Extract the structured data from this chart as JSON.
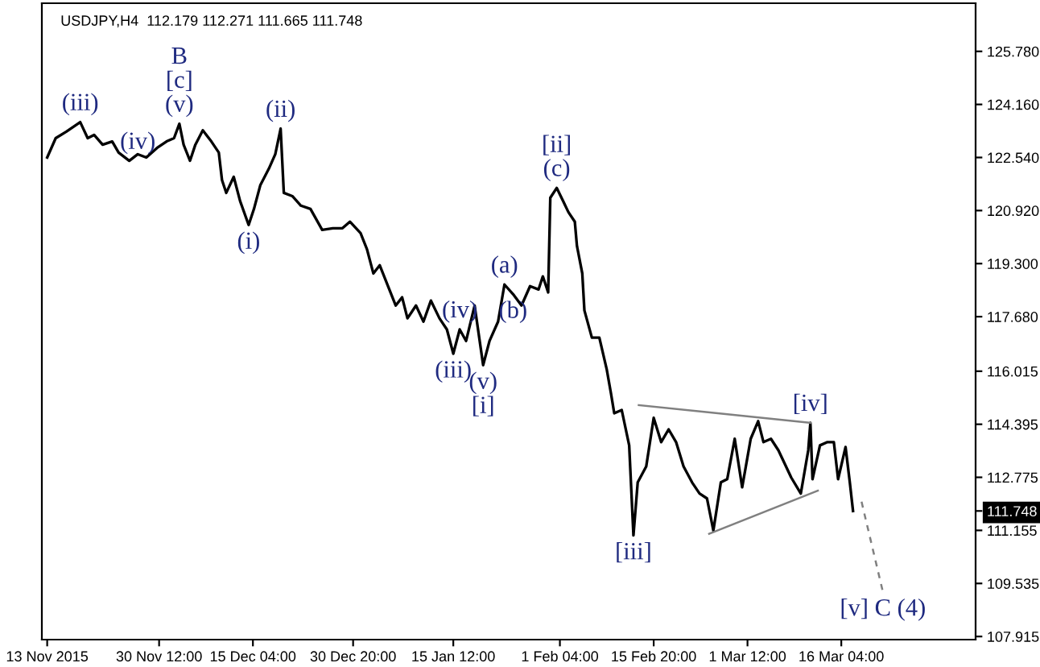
{
  "chart_data": {
    "type": "line",
    "title": "USDJPY,H4  112.179 112.271 111.665 111.748",
    "series": [
      {
        "color": "#000000",
        "x": [
          "2015-11-13T00:00",
          "2015-11-14T08:00",
          "2015-11-16T00:00",
          "2015-11-18T04:00",
          "2015-11-19T08:00",
          "2015-11-20T08:00",
          "2015-11-21T16:00",
          "2015-11-23T04:00",
          "2015-11-24T04:00",
          "2015-11-25T20:00",
          "2015-11-27T04:00",
          "2015-11-28T12:00",
          "2015-11-30T04:00",
          "2015-12-01T16:00",
          "2015-12-02T20:00",
          "2015-12-03T16:00",
          "2015-12-04T08:00",
          "2015-12-05T08:00",
          "2015-12-06T04:00",
          "2015-12-07T08:00",
          "2015-12-08T16:00",
          "2015-12-09T20:00",
          "2015-12-10T08:00",
          "2015-12-11T00:00",
          "2015-12-12T04:00",
          "2015-12-13T04:00",
          "2015-12-14T12:00",
          "2015-12-15T08:00",
          "2015-12-16T08:00",
          "2015-12-17T16:00",
          "2015-12-18T16:00",
          "2015-12-19T12:00",
          "2015-12-20T00:00",
          "2015-12-21T08:00",
          "2015-12-22T16:00",
          "2015-12-24T04:00",
          "2015-12-26T00:00",
          "2015-12-27T16:00",
          "2015-12-29T04:00",
          "2015-12-30T08:00",
          "2016-01-01T00:00",
          "2016-01-02T00:00",
          "2016-01-03T00:00",
          "2016-01-04T00:00",
          "2016-01-05T12:00",
          "2016-01-06T12:00",
          "2016-01-07T12:00",
          "2016-01-08T08:00",
          "2016-01-09T16:00",
          "2016-01-10T20:00",
          "2016-01-12T00:00",
          "2016-01-13T08:00",
          "2016-01-14T12:00",
          "2016-01-15T12:00",
          "2016-01-16T12:00",
          "2016-01-17T12:00",
          "2016-01-18T20:00",
          "2016-01-20T04:00",
          "2016-01-21T04:00",
          "2016-01-22T12:00",
          "2016-01-23T12:00",
          "2016-01-24T20:00",
          "2016-01-26T04:00",
          "2016-01-27T12:00",
          "2016-01-28T20:00",
          "2016-01-29T12:00",
          "2016-01-30T08:00",
          "2016-01-30T16:00",
          "2016-01-31T16:00",
          "2016-02-01T16:00",
          "2016-02-02T12:00",
          "2016-02-03T12:00",
          "2016-02-03T20:00",
          "2016-02-04T16:00",
          "2016-02-05T00:00",
          "2016-02-06T04:00",
          "2016-02-07T08:00",
          "2016-02-08T12:00",
          "2016-02-09T04:00",
          "2016-02-09T16:00",
          "2016-02-10T20:00",
          "2016-02-12T00:00",
          "2016-02-12T16:00",
          "2016-02-13T08:00",
          "2016-02-14T16:00",
          "2016-02-15T20:00",
          "2016-02-17T00:00",
          "2016-02-18T04:00",
          "2016-02-19T08:00",
          "2016-02-20T12:00",
          "2016-02-21T20:00",
          "2016-02-23T00:00",
          "2016-02-24T04:00",
          "2016-02-25T04:00",
          "2016-02-26T08:00",
          "2016-02-27T08:00",
          "2016-02-28T12:00",
          "2016-02-29T16:00",
          "2016-03-02T00:00",
          "2016-03-03T04:00",
          "2016-03-04T00:00",
          "2016-03-05T04:00",
          "2016-03-06T08:00",
          "2016-03-08T08:00",
          "2016-03-09T20:00",
          "2016-03-11T00:00",
          "2016-03-11T08:00",
          "2016-03-11T16:00",
          "2016-03-12T20:00",
          "2016-03-14T00:00",
          "2016-03-15T00:00",
          "2016-03-15T16:00",
          "2016-03-16T20:00",
          "2016-03-17T12:00",
          "2016-03-18T00:00"
        ],
        "values": [
          122.54,
          123.13,
          123.33,
          123.62,
          123.13,
          123.23,
          122.93,
          123.03,
          122.69,
          122.44,
          122.64,
          122.54,
          122.83,
          123.03,
          123.13,
          123.57,
          122.93,
          122.44,
          122.93,
          123.37,
          123.03,
          122.69,
          121.85,
          121.46,
          121.95,
          121.21,
          120.48,
          120.97,
          121.7,
          122.2,
          122.64,
          123.42,
          121.46,
          121.36,
          121.07,
          120.97,
          120.33,
          120.38,
          120.38,
          120.58,
          120.23,
          119.74,
          119.0,
          119.25,
          118.51,
          118.02,
          118.27,
          117.63,
          118.02,
          117.53,
          118.17,
          117.63,
          117.29,
          116.55,
          117.29,
          116.94,
          118.02,
          116.2,
          116.94,
          117.53,
          118.66,
          118.37,
          118.02,
          118.61,
          118.51,
          118.91,
          118.42,
          121.31,
          121.61,
          121.21,
          120.87,
          120.58,
          119.84,
          119.0,
          117.87,
          117.04,
          117.04,
          116.06,
          115.32,
          114.73,
          114.83,
          113.75,
          111.0,
          112.62,
          113.11,
          114.59,
          113.85,
          114.24,
          113.85,
          113.11,
          112.62,
          112.28,
          112.13,
          111.15,
          112.62,
          112.72,
          113.95,
          112.47,
          113.95,
          114.49,
          113.85,
          113.95,
          113.6,
          112.77,
          112.28,
          113.6,
          114.44,
          112.72,
          113.75,
          113.85,
          113.85,
          112.72,
          113.7,
          112.62,
          111.748
        ]
      },
      {
        "color": "#808080",
        "x": [
          "2016-02-13T12:00",
          "2016-03-11T08:00"
        ],
        "values": [
          114.98,
          114.44
        ]
      },
      {
        "color": "#808080",
        "x": [
          "2016-02-24T12:00",
          "2016-03-12T12:00"
        ],
        "values": [
          111.05,
          112.37
        ]
      },
      {
        "color": "#808080",
        "x": [
          "2016-03-19T08:00",
          "2016-03-22T16:00"
        ],
        "values": [
          112.03,
          109.28
        ],
        "line_style": "dashed"
      }
    ],
    "xlim": [
      "2015-11-12T04:00",
      "2016-04-06T04:00"
    ],
    "xticks": [
      {
        "value": "2015-11-13",
        "label": "13 Nov 2015"
      },
      {
        "value": "2015-11-30T12:00",
        "label": "30 Nov 12:00"
      },
      {
        "value": "2015-12-15T04:00",
        "label": "15 Dec 04:00"
      },
      {
        "value": "2015-12-30T20:00",
        "label": "30 Dec 20:00"
      },
      {
        "value": "2016-01-15T12:00",
        "label": "15 Jan 12:00"
      },
      {
        "value": "2016-02-01T04:00",
        "label": "1 Feb 04:00"
      },
      {
        "value": "2016-02-15T20:00",
        "label": "15 Feb 20:00"
      },
      {
        "value": "2016-03-01T12:00",
        "label": "1 Mar 12:00"
      },
      {
        "value": "2016-03-16T04:00",
        "label": "16 Mar 04:00"
      }
    ],
    "ylim": [
      107.82,
      127.25
    ],
    "yticks": [
      {
        "value": 125.78,
        "label": "125.780"
      },
      {
        "value": 124.16,
        "label": "124.160"
      },
      {
        "value": 122.54,
        "label": "122.540"
      },
      {
        "value": 120.92,
        "label": "120.920"
      },
      {
        "value": 119.3,
        "label": "119.300"
      },
      {
        "value": 117.68,
        "label": "117.680"
      },
      {
        "value": 116.015,
        "label": "116.015"
      },
      {
        "value": 114.395,
        "label": "114.395"
      },
      {
        "value": 112.775,
        "label": "112.775"
      },
      {
        "value": 111.748,
        "label": "111.748"
      },
      {
        "value": 111.155,
        "label": "111.155"
      },
      {
        "value": 109.535,
        "label": "109.535"
      },
      {
        "value": 107.915,
        "label": "107.915"
      }
    ],
    "grid": false,
    "annotations": [
      {
        "text": "(iii)",
        "x": "2015-11-18T04:00",
        "y": 123.62
      },
      {
        "text": "(iv)",
        "x": "2015-11-27T04:00",
        "y": 122.44
      },
      {
        "text": "B\n[c]\n(v)",
        "x": "2015-12-03T16:00",
        "y": 123.57
      },
      {
        "text": "(i)",
        "x": "2015-12-14T12:00",
        "y": 120.48
      },
      {
        "text": "(ii)",
        "x": "2015-12-19T12:00",
        "y": 123.42
      },
      {
        "text": "(iii)",
        "x": "2016-01-15T12:00",
        "y": 116.55
      },
      {
        "text": "(iv)",
        "x": "2016-01-16T12:00",
        "y": 117.29
      },
      {
        "text": "(v)\n[i]",
        "x": "2016-01-20T04:00",
        "y": 116.2
      },
      {
        "text": "(a)",
        "x": "2016-01-23T12:00",
        "y": 118.66
      },
      {
        "text": "(b)",
        "x": "2016-01-24T20:00",
        "y": 118.37
      },
      {
        "text": "[ii]\n(c)",
        "x": "2016-01-31T16:00",
        "y": 121.61
      },
      {
        "text": "[iii]",
        "x": "2016-02-12T16:00",
        "y": 111.0
      },
      {
        "text": "[iv]",
        "x": "2016-03-11T08:00",
        "y": 114.44
      },
      {
        "text": "[v] C (4)",
        "x": "2016-03-22T16:00",
        "y": 109.28
      }
    ]
  }
}
